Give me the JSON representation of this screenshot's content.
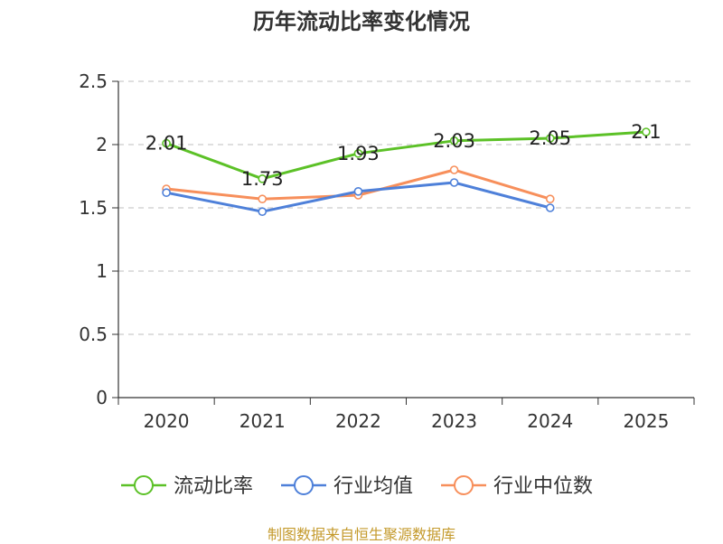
{
  "chart_data": {
    "type": "line",
    "title": "历年流动比率变化情况",
    "categories": [
      "2020",
      "2021",
      "2022",
      "2023",
      "2024",
      "2025"
    ],
    "ylim": [
      0,
      2.5
    ],
    "yticks": [
      "0",
      "0.5",
      "1",
      "1.5",
      "2",
      "2.5"
    ],
    "xlabel": "",
    "ylabel": "",
    "grid": "horizontal-dashed",
    "legend_position": "bottom",
    "series": [
      {
        "name": "流动比率",
        "color": "#5cc127",
        "values": [
          2.01,
          1.73,
          1.93,
          2.03,
          2.05,
          2.1
        ],
        "labels": [
          "2.01",
          "1.73",
          "1.93",
          "2.03",
          "2.05",
          "2.1"
        ]
      },
      {
        "name": "行业均值",
        "color": "#4e80d9",
        "values": [
          1.62,
          1.47,
          1.63,
          1.7,
          1.5,
          null
        ]
      },
      {
        "name": "行业中位数",
        "color": "#f78f5b",
        "values": [
          1.65,
          1.57,
          1.6,
          1.8,
          1.57,
          null
        ]
      }
    ]
  },
  "source_note": "制图数据来自恒生聚源数据库"
}
